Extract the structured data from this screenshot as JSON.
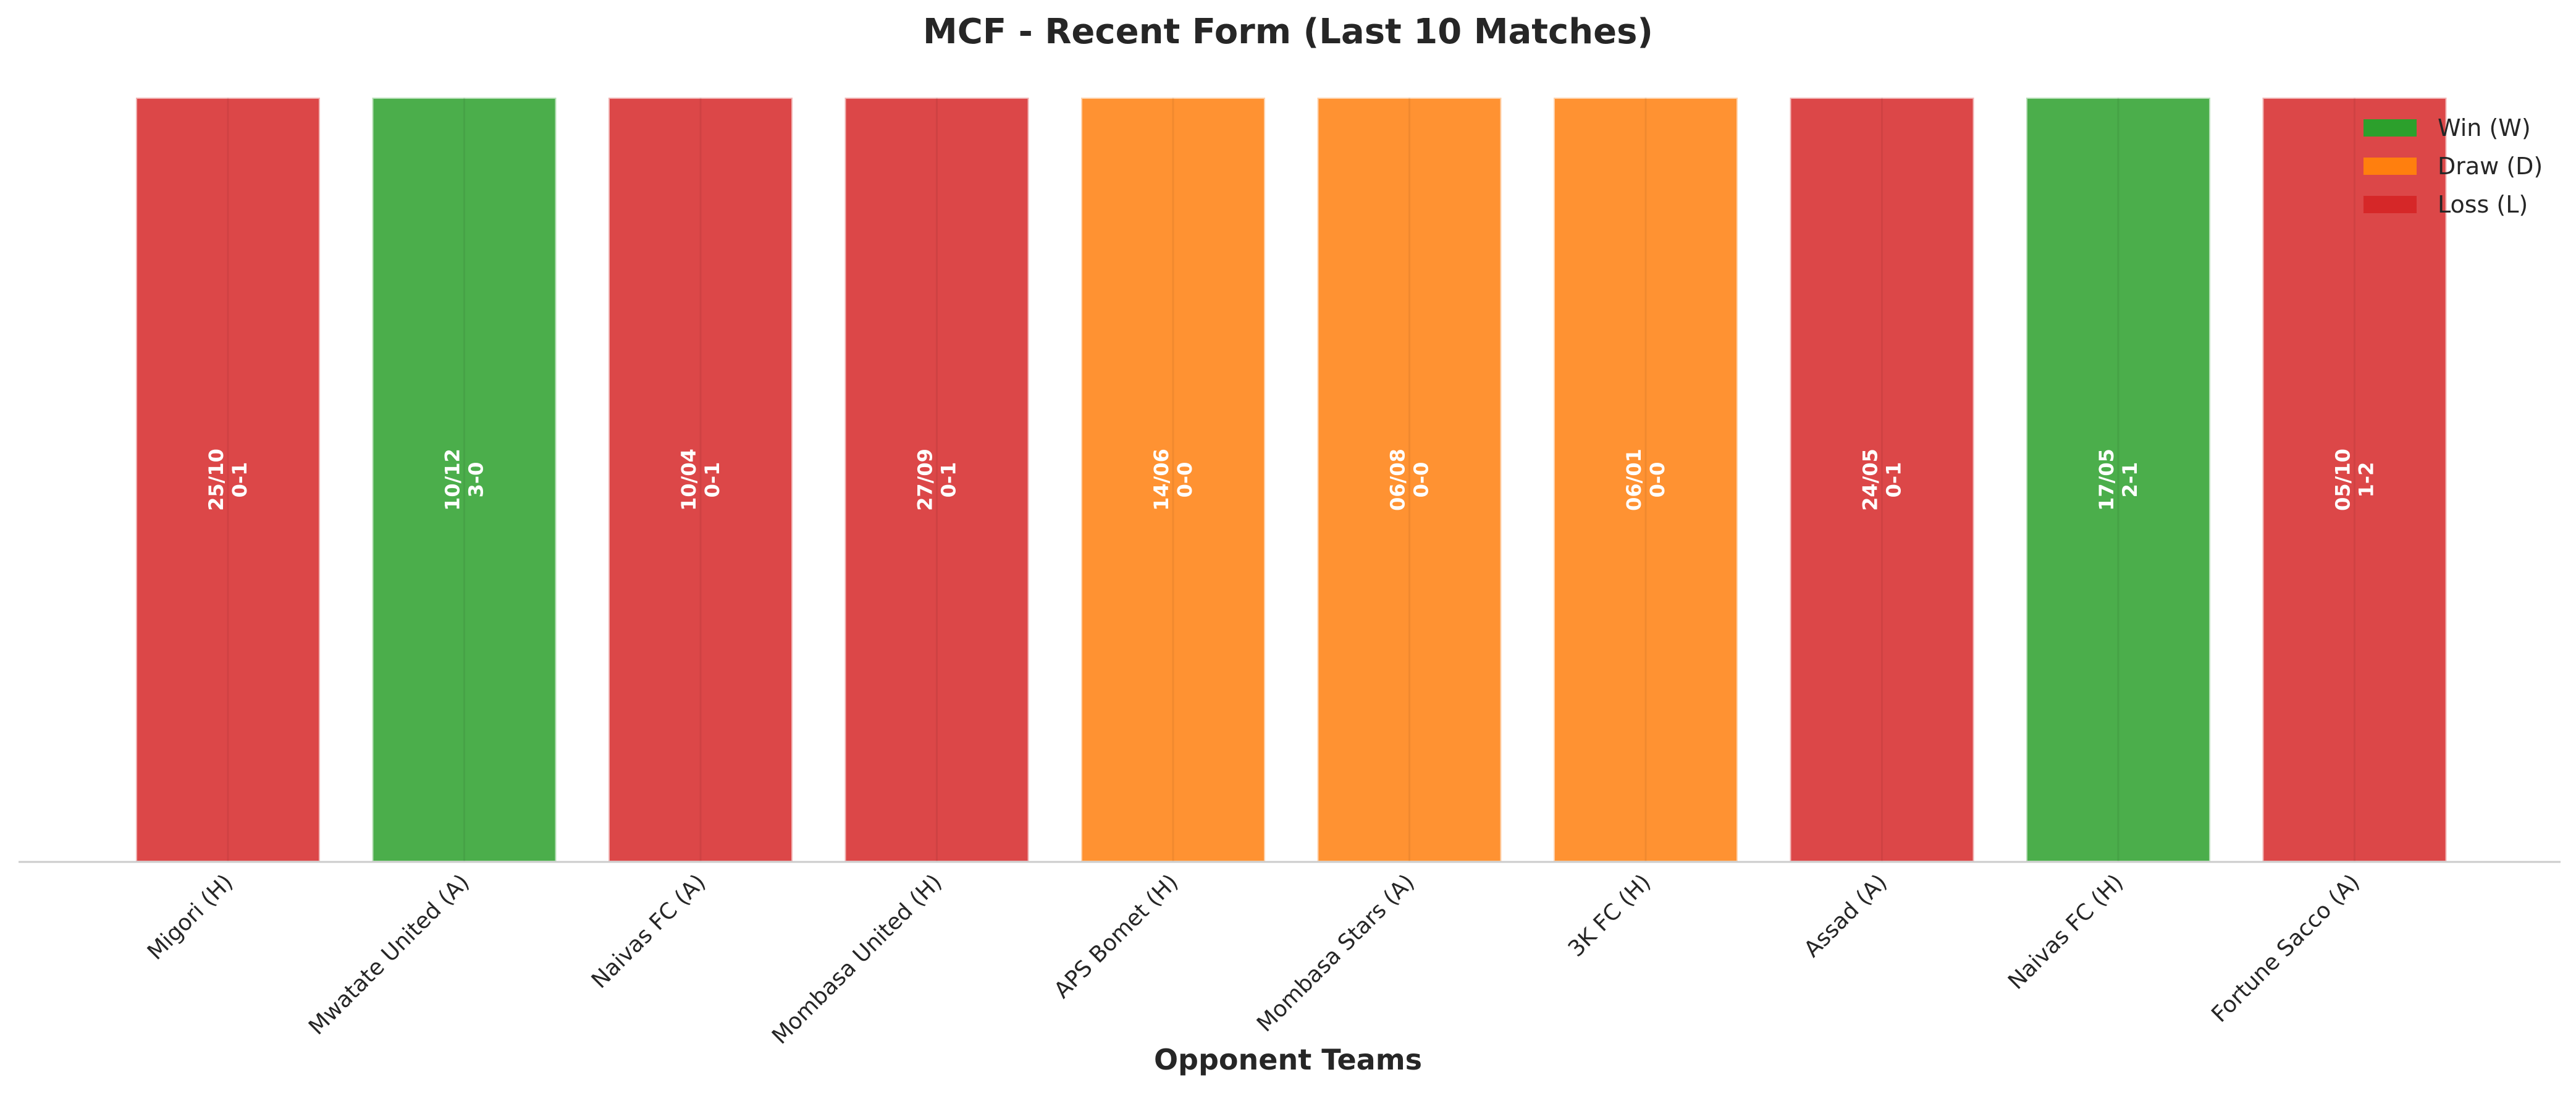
{
  "chart_data": {
    "type": "bar",
    "title": "MCF - Recent Form (Last 10 Matches)",
    "xlabel": "Opponent Teams",
    "ylabel": "",
    "ylim": [
      0,
      1
    ],
    "grid": false,
    "legend_position": "top-right",
    "categories": [
      "Migori (H)",
      "Mwatate United (A)",
      "Naivas FC (A)",
      "Mombasa United (H)",
      "APS Bomet (H)",
      "Mombasa Stars (A)",
      "3K FC (H)",
      "Assad (A)",
      "Naivas FC (H)",
      "Fortune Sacco (A)"
    ],
    "values": [
      1,
      1,
      1,
      1,
      1,
      1,
      1,
      1,
      1,
      1
    ],
    "results": [
      "L",
      "W",
      "L",
      "L",
      "D",
      "D",
      "D",
      "L",
      "W",
      "L"
    ],
    "dates": [
      "25/10",
      "10/12",
      "10/04",
      "27/09",
      "14/06",
      "06/08",
      "06/01",
      "24/05",
      "17/05",
      "05/10"
    ],
    "scores": [
      "0-1",
      "3-0",
      "0-1",
      "0-1",
      "0-0",
      "0-0",
      "0-0",
      "0-1",
      "2-1",
      "1-2"
    ],
    "legend": [
      {
        "key": "W",
        "label": "Win (W)",
        "color": "#2ca02c"
      },
      {
        "key": "D",
        "label": "Draw (D)",
        "color": "#ff7f0e"
      },
      {
        "key": "L",
        "label": "Loss (L)",
        "color": "#d62728"
      }
    ]
  }
}
